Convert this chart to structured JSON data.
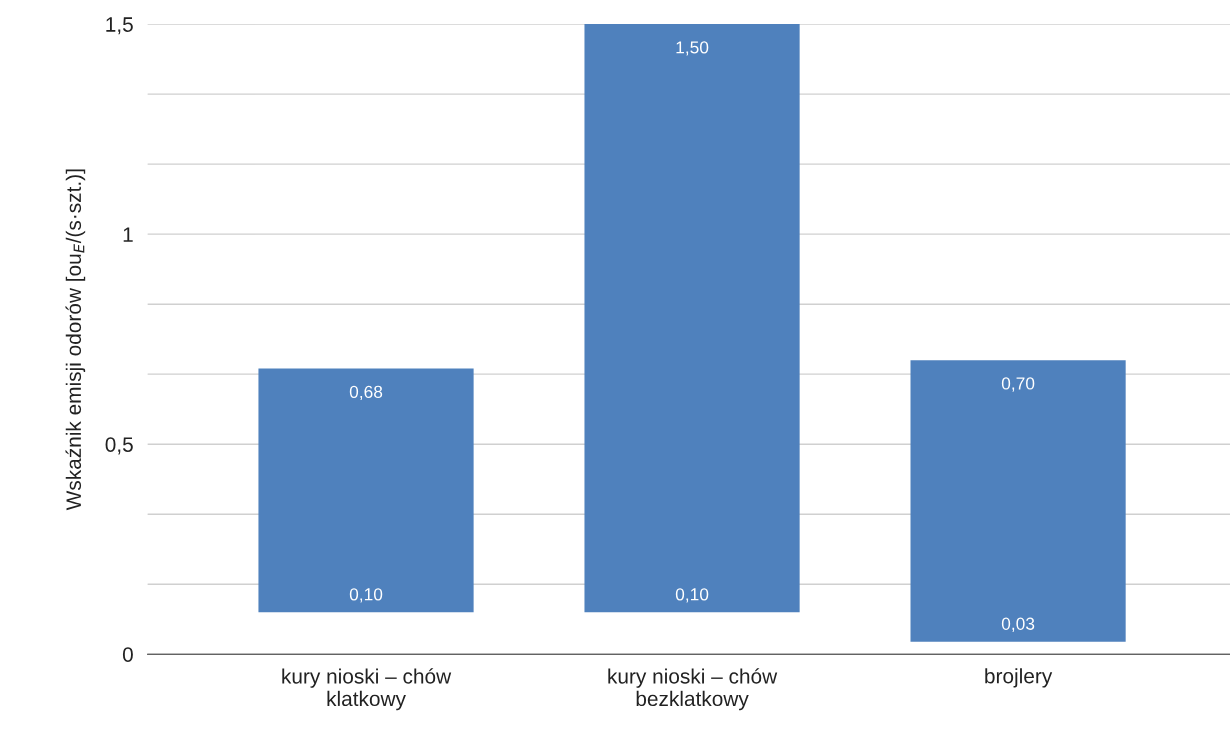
{
  "chart_data": {
    "type": "bar",
    "ylabel": "Wskaźnik emisji odorów [ou$_{E}$/(s·szt.)]",
    "categories": [
      "kury nioski – chów\nklatkowy",
      "kury nioski – chów\nbezklatkowy",
      "brojlery"
    ],
    "base": [
      0.1,
      0.1,
      0.03
    ],
    "values": [
      0.58,
      1.4,
      0.67
    ],
    "color": "#4f81bd",
    "ylim": [
      0,
      1.5
    ],
    "yticks": [
      0,
      {
        "value": 0.1667,
        "label": null
      },
      {
        "value": 0.3333,
        "label": null
      },
      {
        "value": 0.5,
        "label": "0,5"
      },
      {
        "value": 0.6667,
        "label": null
      },
      {
        "value": 0.8333,
        "label": null
      },
      1,
      {
        "value": 1.1667,
        "label": null
      },
      {
        "value": 1.3333,
        "label": null
      },
      {
        "value": 1.5,
        "label": "1,5"
      }
    ],
    "grid": "y",
    "annotations": [
      {
        "text": "0,68",
        "x": "kury nioski – chów\nklatkowy",
        "y": 0.68
      },
      {
        "text": "0,10",
        "x": "kury nioski – chów\nklatkowy",
        "y": 0.1
      },
      {
        "text": "1,50",
        "x": "kury nioski – chów\nbezklatkowy",
        "y": 1.5
      },
      {
        "text": "0,10",
        "x": "kury nioski – chów\nbezklatkowy",
        "y": 0.1
      },
      {
        "text": "0,70",
        "x": "brojlery",
        "y": 0.7
      },
      {
        "text": "0,03",
        "x": "brojlery",
        "y": 0.03
      }
    ]
  }
}
